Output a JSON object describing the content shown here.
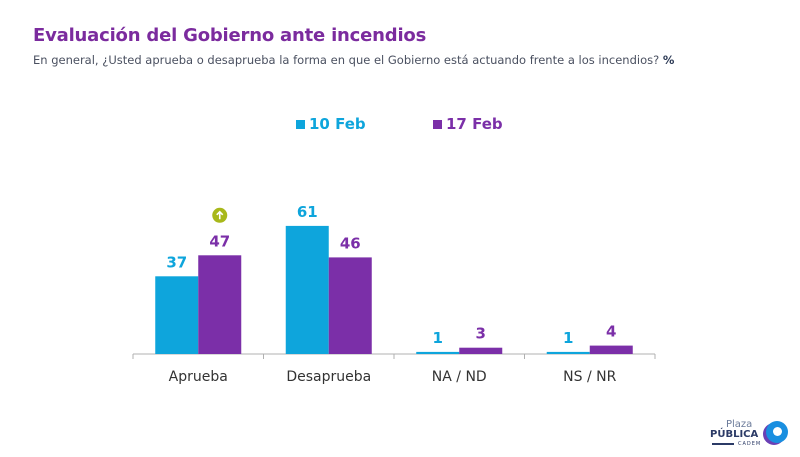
{
  "header": {
    "title": "Evaluación del Gobierno ante incendios",
    "subtitle": "En general, ¿Usted aprueba o desaprueba la forma en que el Gobierno está actuando frente a los incendios?",
    "unit": "%"
  },
  "colors": {
    "series1": "#0ea5dc",
    "series2": "#7b2fa8",
    "title": "#7b2b9e",
    "badge": "#a8b81a"
  },
  "logo": {
    "line1": "Plaza",
    "line2": "PÚBLICA",
    "line3": "CADEM"
  },
  "chart_data": {
    "type": "bar",
    "title": "Evaluación del Gobierno ante incendios",
    "xlabel": "",
    "ylabel": "%",
    "ylim": [
      0,
      70
    ],
    "grid": false,
    "legend_position": "top-center",
    "categories": [
      "Aprueba",
      "Desaprueba",
      "NA / ND",
      "NS / NR"
    ],
    "series": [
      {
        "name": "10 Feb",
        "values": [
          37,
          61,
          1,
          1
        ]
      },
      {
        "name": "17 Feb",
        "values": [
          47,
          46,
          3,
          4
        ]
      }
    ],
    "annotations": [
      {
        "category": "Aprueba",
        "series": "17 Feb",
        "type": "significant-increase",
        "icon": "arrow-up-icon"
      }
    ]
  }
}
